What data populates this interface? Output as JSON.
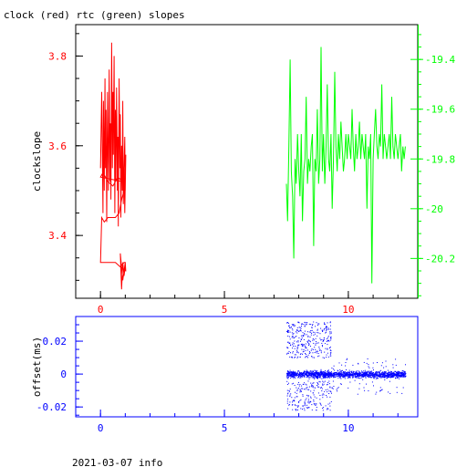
{
  "title": "clock (red) rtc (green) slopes",
  "footer": "2021-03-07 info",
  "colors": {
    "clock": "#ff0000",
    "rtc": "#00ff00",
    "offset": "#0000ff",
    "frame": "#000000"
  },
  "chart_data": [
    {
      "type": "line",
      "ylabel": "clockslope",
      "grid": false,
      "xlim": [
        -1,
        12.8
      ],
      "ylim": [
        3.26,
        3.87
      ],
      "y2lim": [
        -20.36,
        -19.26
      ],
      "x_ticks": [
        0,
        5,
        10
      ],
      "x_tick_labels": [
        "0",
        "5",
        "10"
      ],
      "y_ticks": [
        3.4,
        3.6,
        3.8
      ],
      "y_tick_labels": [
        "3.4",
        "3.6",
        "3.8"
      ],
      "y2_ticks": [
        -20.2,
        -20,
        -19.8,
        -19.6,
        -19.4
      ],
      "y2_tick_labels": [
        "-20.2",
        "-20",
        "-19.8",
        "-19.6",
        "-19.4"
      ],
      "series": [
        {
          "axis": "left",
          "x": [
            0.0,
            0.05,
            0.1,
            0.12,
            0.15,
            0.18,
            0.2,
            0.22,
            0.25,
            0.28,
            0.3,
            0.32,
            0.35,
            0.38,
            0.4,
            0.42,
            0.45,
            0.48,
            0.5,
            0.52,
            0.55,
            0.58,
            0.6,
            0.62,
            0.65,
            0.68,
            0.7,
            0.72,
            0.75,
            0.78,
            0.8,
            0.82,
            0.85,
            0.88,
            0.9,
            0.92,
            0.95,
            0.98,
            1.0,
            1.02,
            0.98,
            0.95,
            0.92,
            0.9,
            0.0,
            0.1,
            0.3,
            0.5,
            0.7,
            0.9,
            0.95,
            0.85,
            0.75,
            0.6,
            0.45,
            0.3,
            0.15,
            0.05,
            0.0,
            0.2,
            0.4,
            0.6,
            0.8,
            0.95,
            1.0,
            0.9,
            0.8,
            0.85,
            0.9,
            0.95,
            1.0,
            1.02,
            1.0
          ],
          "y": [
            3.55,
            3.72,
            3.45,
            3.7,
            3.5,
            3.75,
            3.55,
            3.68,
            3.43,
            3.72,
            3.6,
            3.5,
            3.77,
            3.52,
            3.65,
            3.48,
            3.83,
            3.55,
            3.72,
            3.58,
            3.8,
            3.45,
            3.68,
            3.52,
            3.73,
            3.5,
            3.62,
            3.42,
            3.75,
            3.55,
            3.67,
            3.44,
            3.6,
            3.5,
            3.7,
            3.47,
            3.55,
            3.62,
            3.5,
            3.58,
            3.45,
            3.55,
            3.5,
            3.52,
            3.53,
            3.54,
            3.52,
            3.51,
            3.53,
            3.52,
            3.5,
            3.48,
            3.45,
            3.44,
            3.44,
            3.44,
            3.43,
            3.44,
            3.34,
            3.34,
            3.34,
            3.34,
            3.33,
            3.34,
            3.34,
            3.3,
            3.36,
            3.28,
            3.34,
            3.31,
            3.33,
            3.32,
            3.34
          ]
        },
        {
          "axis": "right",
          "x": [
            7.5,
            7.55,
            7.6,
            7.65,
            7.7,
            7.75,
            7.8,
            7.85,
            7.9,
            7.95,
            8.0,
            8.05,
            8.1,
            8.15,
            8.2,
            8.25,
            8.3,
            8.35,
            8.4,
            8.45,
            8.5,
            8.55,
            8.6,
            8.65,
            8.7,
            8.75,
            8.8,
            8.85,
            8.9,
            8.95,
            9.0,
            9.05,
            9.1,
            9.15,
            9.2,
            9.25,
            9.3,
            9.35,
            9.4,
            9.45,
            9.5,
            9.55,
            9.6,
            9.65,
            9.7,
            9.75,
            9.8,
            9.85,
            9.9,
            9.95,
            10.0,
            10.05,
            10.1,
            10.15,
            10.2,
            10.25,
            10.3,
            10.35,
            10.4,
            10.45,
            10.5,
            10.55,
            10.6,
            10.65,
            10.7,
            10.75,
            10.8,
            10.85,
            10.9,
            10.95,
            11.0,
            11.05,
            11.1,
            11.15,
            11.2,
            11.25,
            11.3,
            11.35,
            11.4,
            11.45,
            11.5,
            11.55,
            11.6,
            11.65,
            11.7,
            11.75,
            11.8,
            11.85,
            11.9,
            11.95,
            12.0,
            12.05,
            12.1,
            12.15,
            12.2,
            12.25,
            12.3
          ],
          "y": [
            -19.9,
            -20.05,
            -19.75,
            -19.4,
            -19.85,
            -19.95,
            -20.2,
            -19.8,
            -19.9,
            -19.7,
            -19.85,
            -19.95,
            -19.7,
            -20.05,
            -19.85,
            -19.8,
            -19.55,
            -19.9,
            -19.8,
            -19.85,
            -19.75,
            -19.7,
            -20.15,
            -19.8,
            -19.85,
            -19.6,
            -19.9,
            -19.8,
            -19.35,
            -19.85,
            -19.7,
            -19.9,
            -19.75,
            -19.5,
            -19.8,
            -19.85,
            -19.7,
            -20.0,
            -19.8,
            -19.45,
            -19.75,
            -19.85,
            -19.7,
            -19.8,
            -19.65,
            -19.75,
            -19.85,
            -19.8,
            -19.7,
            -19.8,
            -19.7,
            -19.75,
            -19.8,
            -19.6,
            -19.75,
            -19.85,
            -19.7,
            -19.8,
            -19.75,
            -19.65,
            -19.8,
            -19.7,
            -19.75,
            -19.8,
            -19.7,
            -20.0,
            -19.75,
            -19.8,
            -19.7,
            -20.3,
            -19.8,
            -19.7,
            -19.6,
            -19.75,
            -19.8,
            -19.7,
            -19.75,
            -19.5,
            -19.8,
            -19.7,
            -19.75,
            -19.8,
            -19.75,
            -19.7,
            -19.8,
            -19.55,
            -19.75,
            -19.8,
            -19.7,
            -19.75,
            -19.8,
            -19.75,
            -19.7,
            -19.85,
            -19.75,
            -19.8,
            -19.75
          ]
        }
      ]
    },
    {
      "type": "scatter",
      "ylabel": "offset(ms)",
      "grid": false,
      "xlim": [
        -1,
        12.8
      ],
      "ylim": [
        -0.026,
        0.035
      ],
      "x_ticks": [
        0,
        5,
        10
      ],
      "x_tick_labels": [
        "0",
        "5",
        "10"
      ],
      "y_ticks": [
        -0.02,
        0,
        0.02
      ],
      "y_tick_labels": [
        "-0.02",
        "0",
        "0.02"
      ],
      "description_of_distribution": {
        "dense_band": {
          "x": [
            7.5,
            12.3
          ],
          "y": [
            -0.004,
            0.004
          ]
        },
        "upper_scatter": {
          "x": [
            7.5,
            9.3
          ],
          "y": [
            0.01,
            0.032
          ]
        },
        "lower_scatter": {
          "x": [
            7.5,
            9.3
          ],
          "y": [
            -0.022,
            -0.004
          ]
        },
        "tail": {
          "x": [
            9.3,
            12.3
          ],
          "y": [
            -0.012,
            0.01
          ]
        }
      }
    }
  ]
}
